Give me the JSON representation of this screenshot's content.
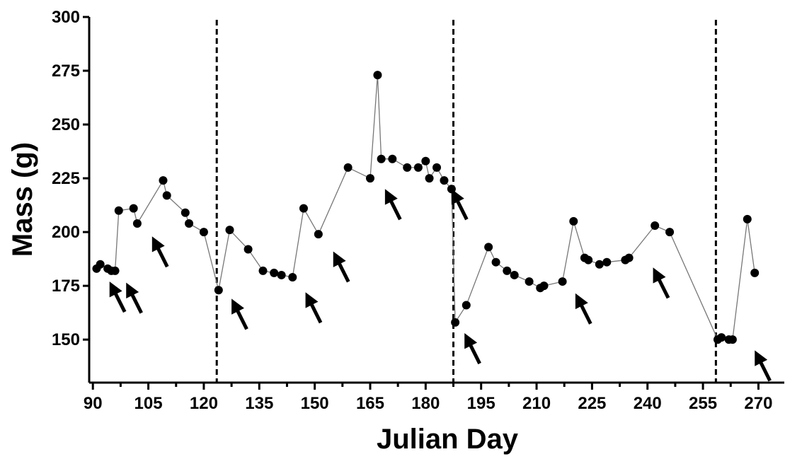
{
  "chart_data": {
    "type": "line",
    "xlabel": "Julian Day",
    "ylabel": "Mass (g)",
    "xlim": [
      89,
      277
    ],
    "ylim": [
      130,
      300
    ],
    "xticks": [
      90,
      105,
      120,
      135,
      150,
      165,
      180,
      195,
      210,
      225,
      240,
      255,
      270
    ],
    "yticks": [
      150,
      175,
      200,
      225,
      250,
      275,
      300
    ],
    "grid": false,
    "legend": "none",
    "colors": {
      "line": "#777777",
      "marker": "#000000",
      "divider": "#000000",
      "arrow": "#000000"
    },
    "series": [
      {
        "x": [
          91,
          92,
          94,
          95,
          96,
          97,
          101,
          102,
          109,
          110,
          115,
          116,
          120,
          124,
          127,
          132,
          136,
          139,
          141,
          144,
          147,
          151,
          159,
          165,
          167,
          168,
          171,
          175,
          178,
          180,
          181,
          183,
          185,
          187,
          188,
          191,
          197,
          199,
          202,
          204,
          208,
          211,
          212,
          217,
          220,
          223,
          224,
          227,
          229,
          234,
          235,
          242,
          246,
          259,
          260,
          262,
          263,
          267,
          269
        ],
        "y": [
          183,
          185,
          183,
          182,
          182,
          210,
          211,
          204,
          224,
          217,
          209,
          204,
          200,
          173,
          201,
          192,
          182,
          181,
          180,
          179,
          211,
          199,
          230,
          225,
          273,
          234,
          234,
          230,
          230,
          233,
          225,
          230,
          224,
          220,
          158,
          166,
          193,
          186,
          182,
          180,
          177,
          174,
          175,
          177,
          205,
          188,
          187,
          185,
          186,
          187,
          188,
          203,
          200,
          150,
          151,
          150,
          150,
          206,
          181
        ]
      }
    ],
    "vertical_lines_x": [
      123.5,
      187.5,
      258.5
    ],
    "arrow_tips": [
      {
        "x": 94.5,
        "y": 177
      },
      {
        "x": 99,
        "y": 176.5
      },
      {
        "x": 106,
        "y": 198
      },
      {
        "x": 127.5,
        "y": 169
      },
      {
        "x": 147.5,
        "y": 172
      },
      {
        "x": 155,
        "y": 191
      },
      {
        "x": 169,
        "y": 220
      },
      {
        "x": 187,
        "y": 220
      },
      {
        "x": 190.5,
        "y": 153
      },
      {
        "x": 220.5,
        "y": 171.5
      },
      {
        "x": 241.5,
        "y": 183.5
      },
      {
        "x": 269,
        "y": 145
      }
    ]
  }
}
